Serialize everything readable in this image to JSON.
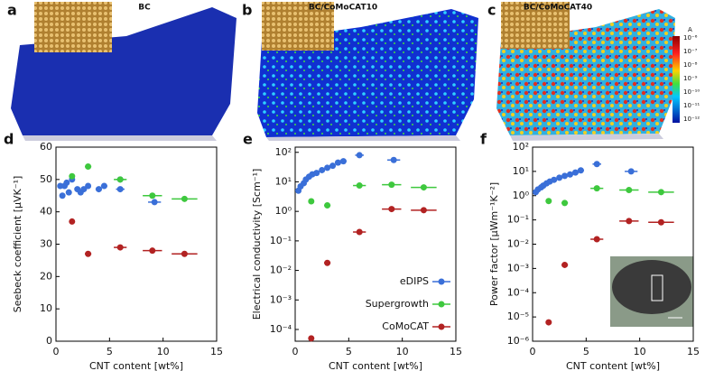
{
  "panels": [
    {
      "label": "a",
      "title": "BC"
    },
    {
      "label": "b",
      "title": "BC/CoMoCAT10"
    },
    {
      "label": "c",
      "title": "BC/CoMoCAT40"
    }
  ],
  "colorbar": {
    "unit": "A",
    "ticks": [
      "10⁻⁶",
      "10⁻⁷",
      "10⁻⁸",
      "10⁻⁹",
      "10⁻¹⁰",
      "10⁻¹¹",
      "10⁻¹²"
    ]
  },
  "chart_data": [
    {
      "type": "scatter",
      "label": "d",
      "xlabel": "CNT content [wt%]",
      "ylabel": "Seebeck coefficient [μVK⁻¹]",
      "xlim": [
        0,
        15
      ],
      "xticks": [
        0,
        5,
        10,
        15
      ],
      "ylim": [
        0,
        60
      ],
      "yticks": [
        0,
        10,
        20,
        30,
        40,
        50,
        60
      ],
      "series": [
        {
          "color": "#3a6fd8",
          "x": [
            0.4,
            0.6,
            0.8,
            1.0,
            1.2,
            1.5,
            2.0,
            2.3,
            2.6,
            3.0,
            4.0,
            4.5,
            6.0,
            6.0,
            9.2
          ],
          "values": [
            48,
            45,
            48,
            49,
            46,
            50,
            47,
            46,
            47,
            48,
            47,
            48,
            50,
            47,
            43
          ],
          "xerr": [
            0.1,
            0.1,
            0.1,
            0.1,
            0.1,
            0.1,
            0.2,
            0.2,
            0.2,
            0.2,
            0.3,
            0.3,
            0.4,
            0.4,
            0.6
          ]
        },
        {
          "color": "#3ec83e",
          "x": [
            1.5,
            3,
            6,
            9,
            12
          ],
          "values": [
            51,
            54,
            50,
            45,
            44
          ],
          "xerr": [
            0.2,
            0.3,
            0.6,
            0.9,
            1.2
          ]
        },
        {
          "color": "#b22222",
          "x": [
            1.5,
            3,
            6,
            9,
            12
          ],
          "values": [
            37,
            27,
            29,
            28,
            27
          ],
          "xerr": [
            0.2,
            0.3,
            0.6,
            0.9,
            1.2
          ]
        }
      ]
    },
    {
      "type": "scatter",
      "label": "e",
      "xlabel": "CNT content [wt%]",
      "ylabel": "Electrical conductivity [Scm⁻¹]",
      "ylog": true,
      "legend": "lower right",
      "xlim": [
        0,
        15
      ],
      "xticks": [
        0,
        5,
        10,
        15
      ],
      "ylim": [
        4e-05,
        150
      ],
      "yticks": [
        {
          "value": 0.0001,
          "label": "10⁻⁴"
        },
        {
          "value": 0.001,
          "label": "10⁻³"
        },
        {
          "value": 0.01,
          "label": "10⁻²"
        },
        {
          "value": 0.1,
          "label": "10⁻¹"
        },
        {
          "value": 1,
          "label": "10⁰"
        },
        {
          "value": 10,
          "label": "10¹"
        },
        {
          "value": 100,
          "label": "10²"
        }
      ],
      "series": [
        {
          "name": "eDIPS",
          "color": "#3a6fd8",
          "x": [
            0.3,
            0.5,
            0.8,
            1.0,
            1.3,
            1.6,
            2.0,
            2.5,
            3.0,
            3.5,
            4.0,
            4.5,
            6.0,
            9.2
          ],
          "values": [
            5,
            7,
            9,
            12,
            15,
            18,
            20,
            25,
            30,
            35,
            45,
            50,
            80,
            55
          ],
          "xerr": [
            0.1,
            0.1,
            0.1,
            0.1,
            0.1,
            0.1,
            0.2,
            0.2,
            0.2,
            0.3,
            0.3,
            0.3,
            0.4,
            0.6
          ]
        },
        {
          "name": "Supergrowth",
          "color": "#3ec83e",
          "x": [
            1.5,
            3,
            6,
            9,
            12
          ],
          "values": [
            2.2,
            1.6,
            7.5,
            8,
            6.5
          ],
          "xerr": [
            0.2,
            0.3,
            0.6,
            0.9,
            1.2
          ]
        },
        {
          "name": "CoMoCAT",
          "color": "#b22222",
          "x": [
            1.5,
            3,
            6,
            9,
            12
          ],
          "values": [
            5e-05,
            0.018,
            0.2,
            1.2,
            1.1
          ],
          "xerr": [
            0.2,
            0.3,
            0.6,
            0.9,
            1.2
          ]
        }
      ]
    },
    {
      "type": "scatter",
      "label": "f",
      "xlabel": "CNT content [wt%]",
      "ylabel": "Power factor [μWm⁻¹K⁻²]",
      "ylog": true,
      "xlim": [
        0,
        15
      ],
      "xticks": [
        0,
        5,
        10,
        15
      ],
      "ylim": [
        1e-06,
        100
      ],
      "yticks": [
        {
          "value": 1e-06,
          "label": "10⁻⁶"
        },
        {
          "value": 1e-05,
          "label": "10⁻⁵"
        },
        {
          "value": 0.0001,
          "label": "10⁻⁴"
        },
        {
          "value": 0.001,
          "label": "10⁻³"
        },
        {
          "value": 0.01,
          "label": "10⁻²"
        },
        {
          "value": 0.1,
          "label": "10⁻¹"
        },
        {
          "value": 1,
          "label": "10⁰"
        },
        {
          "value": 10,
          "label": "10¹"
        },
        {
          "value": 100,
          "label": "10²"
        }
      ],
      "series": [
        {
          "color": "#3a6fd8",
          "x": [
            0.3,
            0.5,
            0.8,
            1.0,
            1.3,
            1.6,
            2.0,
            2.5,
            3.0,
            3.5,
            4.0,
            4.5,
            6.0,
            9.2
          ],
          "values": [
            1.4,
            1.8,
            2.2,
            2.6,
            3.2,
            3.8,
            4.5,
            5.5,
            6.5,
            7.5,
            9,
            11,
            20,
            10
          ],
          "xerr": [
            0.1,
            0.1,
            0.1,
            0.1,
            0.1,
            0.1,
            0.2,
            0.2,
            0.2,
            0.3,
            0.3,
            0.3,
            0.4,
            0.6
          ]
        },
        {
          "color": "#3ec83e",
          "x": [
            1.5,
            3,
            6,
            9,
            12
          ],
          "values": [
            0.6,
            0.5,
            2.0,
            1.7,
            1.4
          ],
          "xerr": [
            0.2,
            0.3,
            0.6,
            0.9,
            1.2
          ]
        },
        {
          "color": "#b22222",
          "x": [
            1.5,
            3,
            6,
            9,
            12
          ],
          "values": [
            6e-06,
            0.0014,
            0.016,
            0.09,
            0.08
          ],
          "xerr": [
            0.2,
            0.3,
            0.6,
            0.9,
            1.2
          ]
        }
      ]
    }
  ]
}
